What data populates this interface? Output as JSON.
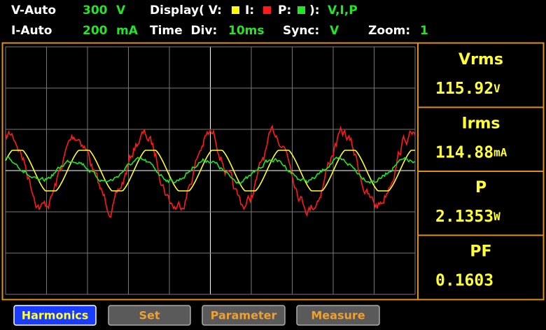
{
  "status": {
    "voltage_range": {
      "label": "V-Auto",
      "value": 300,
      "unit": "V"
    },
    "current_range": {
      "label": "I-Auto",
      "value": 200,
      "unit": "mA"
    },
    "display": {
      "label": "Display( V:",
      "i_label": "I:",
      "p_label": "P:",
      "close": "):",
      "value": "V,I,P"
    },
    "time_div": {
      "label": "Time  Div:",
      "value": "10ms"
    },
    "sync": {
      "label": "Sync:",
      "value": "V"
    },
    "zoom": {
      "label": "Zoom:",
      "value": 1
    }
  },
  "measurements": [
    {
      "name": "Vrms",
      "value": 115.92,
      "unit": "V"
    },
    {
      "name": "Irms",
      "value": 114.88,
      "unit": "mA"
    },
    {
      "name": "P",
      "value": 2.1353,
      "unit": "W"
    },
    {
      "name": "PF",
      "value": 0.1603
    }
  ],
  "buttons": [
    "Harmonics",
    "Set",
    "Parameter",
    "Measure"
  ]
}
